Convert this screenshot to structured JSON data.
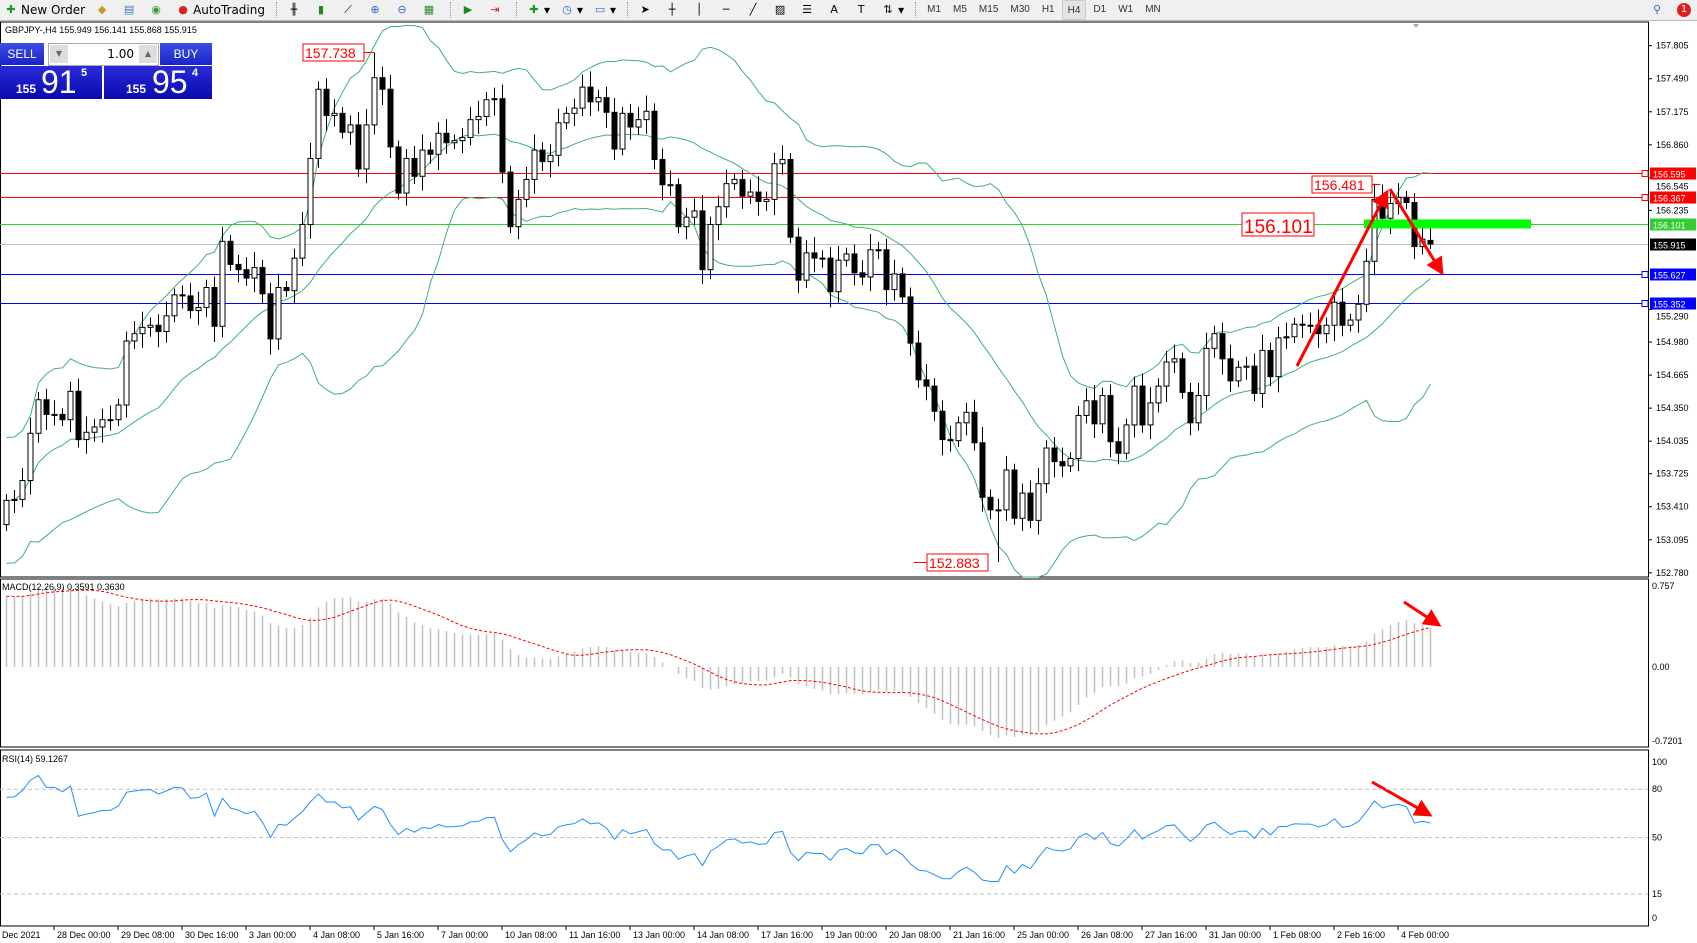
{
  "toolbar": {
    "new_order": "New Order",
    "auto_trading": "AutoTrading",
    "timeframes": [
      "M1",
      "M5",
      "M15",
      "M30",
      "H1",
      "H4",
      "D1",
      "W1",
      "MN"
    ],
    "active_timeframe": "H4",
    "notification_count": "1"
  },
  "symbol_info": "GBPJPY-,H4  155.949 156.141 155.868 155.915",
  "trade_panel": {
    "sell_label": "SELL",
    "buy_label": "BUY",
    "lot": "1.00",
    "sell_small": "155",
    "sell_big": "91",
    "sell_pip": "5",
    "buy_small": "155",
    "buy_big": "95",
    "buy_pip": "4"
  },
  "chart_data": {
    "type": "candlestick",
    "symbol": "GBPJPY-",
    "timeframe": "H4",
    "last_bar": {
      "open": 155.949,
      "high": 156.141,
      "low": 155.868,
      "close": 155.915
    },
    "ylim": [
      152.78,
      157.9
    ],
    "price_ticks": [
      "157.805",
      "157.490",
      "157.175",
      "156.860",
      "156.545",
      "156.235",
      "155.290",
      "154.980",
      "154.665",
      "154.350",
      "154.035",
      "153.725",
      "153.410",
      "153.095",
      "152.780"
    ],
    "date_labels": [
      "Dec 2021",
      "28 Dec 00:00",
      "29 Dec 08:00",
      "30 Dec 16:00",
      "3 Jan 00:00",
      "4 Jan 08:00",
      "5 Jan 16:00",
      "7 Jan 00:00",
      "10 Jan 08:00",
      "11 Jan 16:00",
      "13 Jan 00:00",
      "14 Jan 08:00",
      "17 Jan 16:00",
      "19 Jan 00:00",
      "20 Jan 08:00",
      "21 Jan 16:00",
      "25 Jan 00:00",
      "26 Jan 08:00",
      "27 Jan 16:00",
      "31 Jan 00:00",
      "1 Feb 08:00",
      "2 Feb 16:00",
      "4 Feb 00:00"
    ],
    "closes": [
      153.47,
      153.48,
      153.66,
      154.11,
      154.43,
      154.29,
      154.29,
      154.24,
      154.51,
      154.05,
      154.12,
      154.17,
      154.24,
      154.24,
      154.38,
      154.99,
      155.06,
      155.12,
      155.14,
      155.08,
      155.23,
      155.43,
      155.42,
      155.28,
      155.31,
      155.5,
      155.13,
      155.94,
      155.72,
      155.67,
      155.59,
      155.69,
      155.44,
      155.01,
      155.5,
      155.47,
      155.78,
      156.1,
      156.73,
      157.39,
      157.14,
      157.16,
      156.98,
      157.05,
      156.63,
      157.05,
      157.5,
      157.39,
      156.84,
      156.4,
      156.73,
      156.56,
      156.81,
      156.77,
      156.97,
      156.88,
      156.9,
      156.93,
      157.1,
      157.13,
      157.29,
      157.3,
      156.6,
      156.08,
      156.34,
      156.53,
      156.81,
      156.7,
      156.76,
      157.07,
      157.16,
      157.21,
      157.41,
      157.27,
      157.31,
      157.17,
      156.82,
      157.16,
      157.03,
      157.1,
      157.18,
      156.72,
      156.48,
      156.48,
      156.08,
      156.17,
      156.23,
      155.67,
      156.1,
      156.27,
      156.49,
      156.53,
      156.37,
      156.41,
      156.32,
      156.34,
      156.68,
      156.72,
      155.98,
      155.57,
      155.83,
      155.78,
      155.78,
      155.46,
      155.76,
      155.82,
      155.64,
      155.6,
      155.86,
      155.86,
      155.48,
      155.63,
      155.41,
      154.97,
      154.62,
      154.56,
      154.32,
      154.05,
      154.04,
      154.21,
      154.31,
      154.02,
      153.5,
      153.38,
      153.38,
      153.76,
      153.3,
      153.54,
      153.28,
      153.63,
      153.97,
      153.84,
      153.8,
      153.87,
      154.28,
      154.42,
      154.2,
      154.47,
      154.03,
      153.92,
      154.19,
      154.56,
      154.19,
      154.4,
      154.56,
      154.79,
      154.82,
      154.5,
      154.21,
      154.47,
      154.92,
      155.06,
      154.82,
      154.61,
      154.74,
      154.75,
      154.49,
      154.9,
      154.65,
      155.02,
      155.03,
      155.15,
      155.14,
      155.14,
      155.06,
      155.14,
      155.36,
      155.14,
      155.19,
      155.34,
      155.75,
      156.34,
      156.16,
      156.3,
      156.36,
      156.31,
      155.89,
      155.96,
      155.915
    ],
    "horizontal_lines": [
      {
        "price": 156.595,
        "label": "156.595",
        "color": "#ff0000"
      },
      {
        "price": 156.367,
        "label": "156.367",
        "color": "#ff0000"
      },
      {
        "price": 156.101,
        "label": "156.101",
        "color": "#32cd32"
      },
      {
        "price": 155.915,
        "label": "155.915",
        "color": "#000000",
        "line_color": "#c0c0c0"
      },
      {
        "price": 155.627,
        "label": "155.627",
        "color": "#0000ff"
      },
      {
        "price": 155.352,
        "label": "155.352",
        "color": "#0000ff"
      }
    ],
    "price_labels": [
      {
        "text": "157.738",
        "price": 157.738,
        "bar": 46
      },
      {
        "text": "152.883",
        "price": 152.883,
        "bar": 124
      },
      {
        "text": "156.481",
        "price": 156.481,
        "bar": 172
      },
      {
        "text": "156.101",
        "price": 156.101
      }
    ],
    "zone": {
      "price": 156.101,
      "color": "#00ff00"
    },
    "colors": {
      "bands": "#3cb371",
      "annotation": "#ff0000",
      "rsi": "#1e90ff",
      "macd_hist": "#c0c0c0",
      "macd_signal": "#ff0000"
    },
    "macd": {
      "label": "MACD(12,26,9) 0.3591 0.3630",
      "ticks": [
        "0.757",
        "0.00",
        "-0.7201"
      ],
      "ylim": [
        -0.7201,
        0.757
      ]
    },
    "rsi": {
      "label": "RSI(14) 59.1267",
      "ticks": [
        "100",
        "80",
        "50",
        "15",
        "0"
      ],
      "levels": [
        80,
        50,
        15
      ],
      "ylim": [
        0,
        100
      ]
    }
  }
}
